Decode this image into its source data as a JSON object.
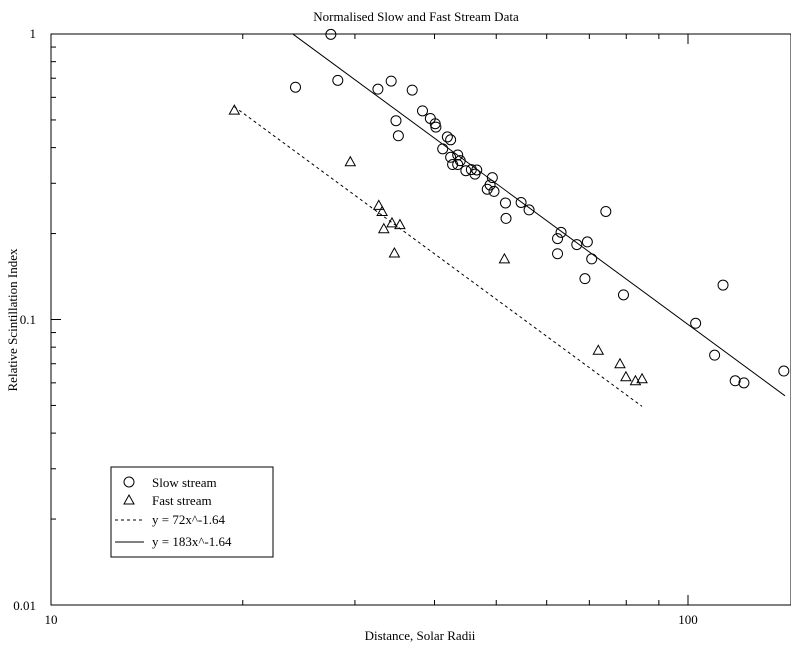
{
  "chart_data": {
    "type": "scatter",
    "title": "Normalised Slow and Fast Stream Data",
    "xlabel": "Distance, Solar Radii",
    "ylabel": "Relative Scintillation Index",
    "xscale": "log",
    "yscale": "log",
    "xlim": [
      10,
      160
    ],
    "ylim": [
      0.01,
      1
    ],
    "x_tick_labels": [
      {
        "value": 10,
        "label": "10"
      },
      {
        "value": 100,
        "label": "100"
      }
    ],
    "y_tick_labels": [
      {
        "value": 0.01,
        "label": "0.01"
      },
      {
        "value": 0.1,
        "label": "0.1"
      },
      {
        "value": 1,
        "label": "1"
      }
    ],
    "grid": false,
    "legend_position": "bottom-left",
    "series": [
      {
        "name": "Slow stream",
        "marker": "circle",
        "points": [
          [
            24.2,
            0.651
          ],
          [
            27.5,
            0.997
          ],
          [
            28.2,
            0.688
          ],
          [
            32.6,
            0.641
          ],
          [
            34.2,
            0.684
          ],
          [
            34.8,
            0.497
          ],
          [
            35.1,
            0.44
          ],
          [
            36.9,
            0.636
          ],
          [
            38.3,
            0.538
          ],
          [
            39.4,
            0.506
          ],
          [
            40.1,
            0.485
          ],
          [
            40.2,
            0.472
          ],
          [
            41.2,
            0.396
          ],
          [
            41.9,
            0.436
          ],
          [
            42.4,
            0.426
          ],
          [
            42.4,
            0.37
          ],
          [
            42.7,
            0.349
          ],
          [
            43.5,
            0.349
          ],
          [
            43.5,
            0.377
          ],
          [
            43.9,
            0.36
          ],
          [
            44.8,
            0.332
          ],
          [
            45.7,
            0.335
          ],
          [
            46.3,
            0.323
          ],
          [
            46.6,
            0.334
          ],
          [
            48.4,
            0.286
          ],
          [
            48.9,
            0.296
          ],
          [
            49.3,
            0.314
          ],
          [
            49.6,
            0.281
          ],
          [
            51.7,
            0.256
          ],
          [
            51.8,
            0.226
          ],
          [
            54.7,
            0.257
          ],
          [
            56.3,
            0.242
          ],
          [
            62.4,
            0.192
          ],
          [
            62.4,
            0.17
          ],
          [
            63.2,
            0.202
          ],
          [
            66.9,
            0.183
          ],
          [
            68.9,
            0.139
          ],
          [
            69.5,
            0.187
          ],
          [
            70.6,
            0.163
          ],
          [
            74.3,
            0.239
          ],
          [
            79.2,
            0.122
          ],
          [
            102.8,
            0.097
          ],
          [
            110.1,
            0.075
          ],
          [
            113.5,
            0.132
          ],
          [
            118.6,
            0.061
          ],
          [
            122.4,
            0.06
          ],
          [
            141.4,
            0.066
          ]
        ]
      },
      {
        "name": "Fast stream",
        "marker": "triangle",
        "points": [
          [
            19.4,
            0.541
          ],
          [
            29.5,
            0.357
          ],
          [
            32.7,
            0.251
          ],
          [
            33.1,
            0.239
          ],
          [
            33.3,
            0.208
          ],
          [
            34.3,
            0.218
          ],
          [
            34.6,
            0.171
          ],
          [
            35.3,
            0.215
          ],
          [
            51.5,
            0.163
          ],
          [
            72.3,
            0.078
          ],
          [
            78.2,
            0.07
          ],
          [
            79.9,
            0.063
          ],
          [
            82.7,
            0.061
          ],
          [
            84.7,
            0.062
          ]
        ]
      }
    ],
    "fits": [
      {
        "name": "y = 72x^-1.64",
        "style": "dashed",
        "a": 72,
        "b": -1.64,
        "x_range": [
          19.4,
          84.7
        ]
      },
      {
        "name": "y = 183x^-1.64",
        "style": "solid",
        "a": 183,
        "b": -1.64,
        "x_range": [
          24,
          142
        ]
      }
    ]
  }
}
